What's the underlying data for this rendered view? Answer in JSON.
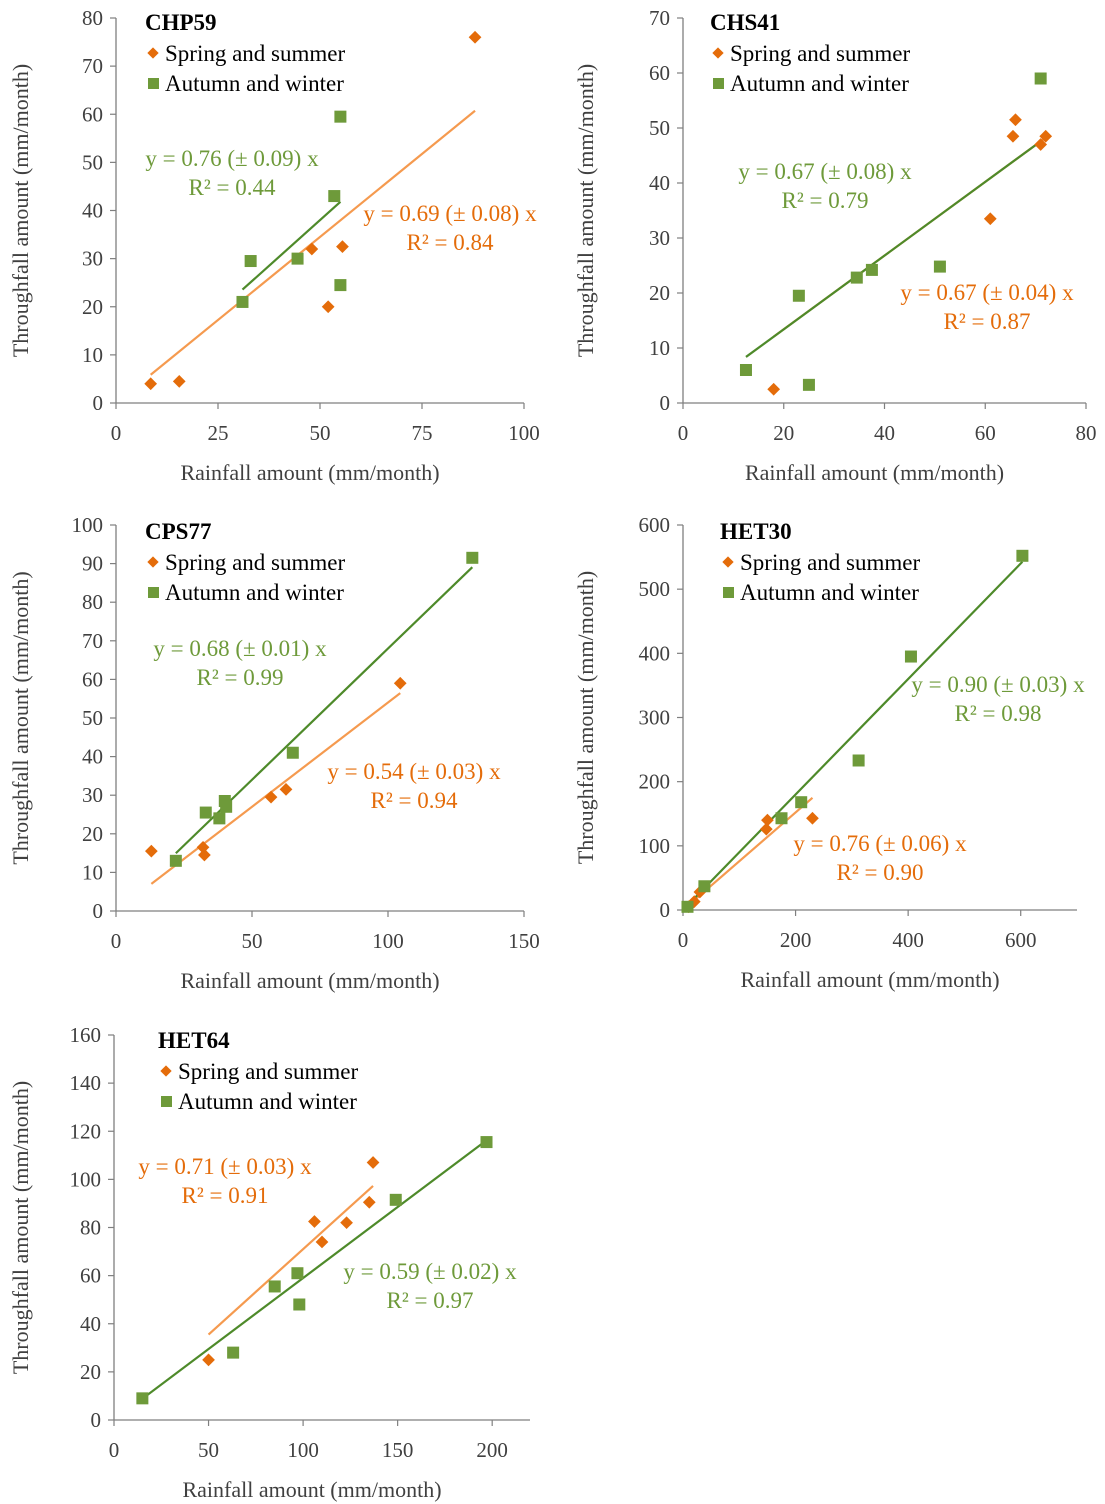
{
  "legend": {
    "spring": "Spring and summer",
    "autumn": "Autumn and winter"
  },
  "colors": {
    "spring": "#e46c0a",
    "spring_line": "#f59a4f",
    "autumn": "#6e9a3a",
    "autumn_line": "#4e8a2a",
    "axis": "#7f7f7f"
  },
  "chart_data": [
    {
      "type": "scatter",
      "title": "CHP59",
      "xlabel": "Rainfall amount (mm/month)",
      "ylabel": "Throughfall amount (mm/month)",
      "xlim": [
        0,
        100
      ],
      "xticks": [
        0,
        25,
        50,
        75,
        100
      ],
      "ylim": [
        0,
        80
      ],
      "yticks": [
        0,
        10,
        20,
        30,
        40,
        50,
        60,
        70,
        80
      ],
      "series": [
        {
          "name": "Spring and summer",
          "marker": "diamond",
          "points": [
            [
              8.5,
              4
            ],
            [
              15.5,
              4.5
            ],
            [
              48,
              32
            ],
            [
              52,
              20
            ],
            [
              55.5,
              32.5
            ],
            [
              88,
              76
            ]
          ],
          "fit": {
            "x_range": [
              8.5,
              88
            ],
            "slope": 0.69,
            "eq": "y = 0.69 (± 0.08) x",
            "r2": "R² = 0.84"
          }
        },
        {
          "name": "Autumn and winter",
          "marker": "square",
          "points": [
            [
              31,
              21
            ],
            [
              33,
              29.5
            ],
            [
              44.5,
              30
            ],
            [
              53.5,
              43
            ],
            [
              55,
              24.5
            ],
            [
              55,
              59.5
            ]
          ],
          "fit": {
            "x_range": [
              31,
              55
            ],
            "slope": 0.76,
            "eq": "y = 0.76 (± 0.09) x",
            "r2": "R² = 0.44"
          }
        }
      ]
    },
    {
      "type": "scatter",
      "title": "CHS41",
      "xlabel": "Rainfall amount (mm/month)",
      "ylabel": "Throughfall amount (mm/month)",
      "xlim": [
        0,
        80
      ],
      "xticks": [
        0,
        20,
        40,
        60,
        80
      ],
      "ylim": [
        0,
        70
      ],
      "yticks": [
        0,
        10,
        20,
        30,
        40,
        50,
        60,
        70
      ],
      "series": [
        {
          "name": "Spring and summer",
          "marker": "diamond",
          "points": [
            [
              18,
              2.5
            ],
            [
              61,
              33.5
            ],
            [
              65.5,
              48.5
            ],
            [
              66,
              51.5
            ],
            [
              71,
              47
            ],
            [
              72,
              48.5
            ]
          ],
          "fit": {
            "x_range": [
              18,
              72
            ],
            "slope": 0.67,
            "eq": "y = 0.67 (± 0.04) x",
            "r2": "R² = 0.87"
          }
        },
        {
          "name": "Autumn and winter",
          "marker": "square",
          "points": [
            [
              12.5,
              6
            ],
            [
              23,
              19.5
            ],
            [
              25,
              3.3
            ],
            [
              34.5,
              22.8
            ],
            [
              37.5,
              24.2
            ],
            [
              51,
              24.8
            ],
            [
              71,
              59
            ]
          ],
          "fit": {
            "x_range": [
              12.5,
              71
            ],
            "slope": 0.67,
            "eq": "y = 0.67 (± 0.08) x",
            "r2": "R² = 0.79"
          }
        }
      ]
    },
    {
      "type": "scatter",
      "title": "CPS77",
      "xlabel": "Rainfall amount (mm/month)",
      "ylabel": "Throughfall amount (mm/month)",
      "xlim": [
        0,
        150
      ],
      "xticks": [
        0,
        50,
        100,
        150
      ],
      "ylim": [
        0,
        100
      ],
      "yticks": [
        0,
        10,
        20,
        30,
        40,
        50,
        60,
        70,
        80,
        90,
        100
      ],
      "series": [
        {
          "name": "Spring and summer",
          "marker": "diamond",
          "points": [
            [
              13,
              15.5
            ],
            [
              32,
              16.5
            ],
            [
              32.5,
              14.5
            ],
            [
              57,
              29.5
            ],
            [
              62.5,
              31.5
            ],
            [
              104.5,
              59
            ]
          ],
          "fit": {
            "x_range": [
              13,
              104.5
            ],
            "slope": 0.54,
            "eq": "y = 0.54 (± 0.03) x",
            "r2": "R² = 0.94"
          }
        },
        {
          "name": "Autumn and winter",
          "marker": "square",
          "points": [
            [
              22,
              13
            ],
            [
              33,
              25.5
            ],
            [
              38,
              24
            ],
            [
              40,
              28.5
            ],
            [
              40.5,
              27
            ],
            [
              65,
              41
            ],
            [
              131,
              91.5
            ]
          ],
          "fit": {
            "x_range": [
              22,
              131
            ],
            "slope": 0.68,
            "eq": "y = 0.68 (± 0.01) x",
            "r2": "R² = 0.99"
          }
        }
      ]
    },
    {
      "type": "scatter",
      "title": "HET30",
      "xlabel": "Rainfall amount (mm/month)",
      "ylabel": "Throughfall amount (mm/month)",
      "xlim": [
        0,
        700
      ],
      "xticks": [
        0,
        200,
        400,
        600
      ],
      "ylim": [
        0,
        600
      ],
      "yticks": [
        0,
        100,
        200,
        300,
        400,
        500,
        600
      ],
      "series": [
        {
          "name": "Spring and summer",
          "marker": "diamond",
          "points": [
            [
              10,
              5
            ],
            [
              20,
              13
            ],
            [
              30,
              28
            ],
            [
              148,
              126
            ],
            [
              150,
              140
            ],
            [
              230,
              143
            ]
          ],
          "fit": {
            "x_range": [
              10,
              230
            ],
            "slope": 0.76,
            "eq": "y = 0.76 (± 0.06) x",
            "r2": "R² = 0.90"
          }
        },
        {
          "name": "Autumn and winter",
          "marker": "square",
          "points": [
            [
              8,
              5
            ],
            [
              38,
              37
            ],
            [
              175,
              143
            ],
            [
              210,
              168
            ],
            [
              312,
              233
            ],
            [
              405,
              395
            ],
            [
              603,
              552
            ]
          ],
          "fit": {
            "x_range": [
              8,
              603
            ],
            "slope": 0.9,
            "eq": "y = 0.90 (± 0.03) x",
            "r2": "R² = 0.98"
          }
        }
      ]
    },
    {
      "type": "scatter",
      "title": "HET64",
      "xlabel": "Rainfall amount (mm/month)",
      "ylabel": "Throughfall amount (mm/month)",
      "xlim": [
        0,
        220
      ],
      "xticks": [
        0,
        50,
        100,
        150,
        200
      ],
      "ylim": [
        0,
        160
      ],
      "yticks": [
        0,
        20,
        40,
        60,
        80,
        100,
        120,
        140,
        160
      ],
      "series": [
        {
          "name": "Spring and summer",
          "marker": "diamond",
          "points": [
            [
              50,
              25
            ],
            [
              106,
              82.5
            ],
            [
              110,
              74
            ],
            [
              123,
              82
            ],
            [
              135,
              90.5
            ],
            [
              137,
              107
            ]
          ],
          "fit": {
            "x_range": [
              50,
              137
            ],
            "slope": 0.71,
            "eq": "y = 0.71 (± 0.03) x",
            "r2": "R² = 0.91"
          }
        },
        {
          "name": "Autumn and winter",
          "marker": "square",
          "points": [
            [
              15,
              9
            ],
            [
              63,
              28
            ],
            [
              85,
              55.5
            ],
            [
              97,
              61
            ],
            [
              98,
              48
            ],
            [
              149,
              91.5
            ],
            [
              197,
              115.5
            ]
          ],
          "fit": {
            "x_range": [
              15,
              197
            ],
            "slope": 0.59,
            "eq": "y = 0.59 (± 0.02) x",
            "r2": "R² = 0.97"
          }
        }
      ]
    }
  ]
}
